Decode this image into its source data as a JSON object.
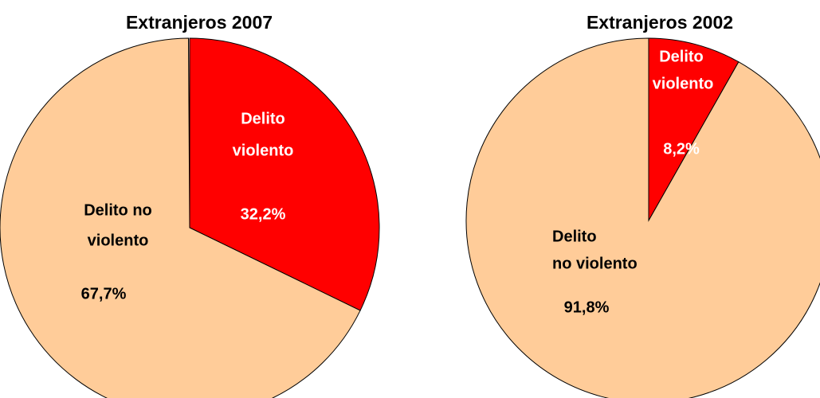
{
  "chart_data": [
    {
      "type": "pie",
      "title": "Extranjeros 2007",
      "categories": [
        [
          "Delito",
          "violento"
        ],
        [
          "Delito no",
          "violento"
        ]
      ],
      "values": [
        32.2,
        67.7
      ],
      "value_labels": [
        "32,2%",
        "67,7%"
      ],
      "colors": [
        "#ff0000",
        "#ffcc99"
      ]
    },
    {
      "type": "pie",
      "title": "Extranjeros 2002",
      "categories": [
        [
          "Delito",
          "violento"
        ],
        [
          "Delito",
          "no violento"
        ]
      ],
      "values": [
        8.2,
        91.8
      ],
      "value_labels": [
        "8,2%",
        "91,8%"
      ],
      "colors": [
        "#ff0000",
        "#ffcc99"
      ]
    }
  ]
}
